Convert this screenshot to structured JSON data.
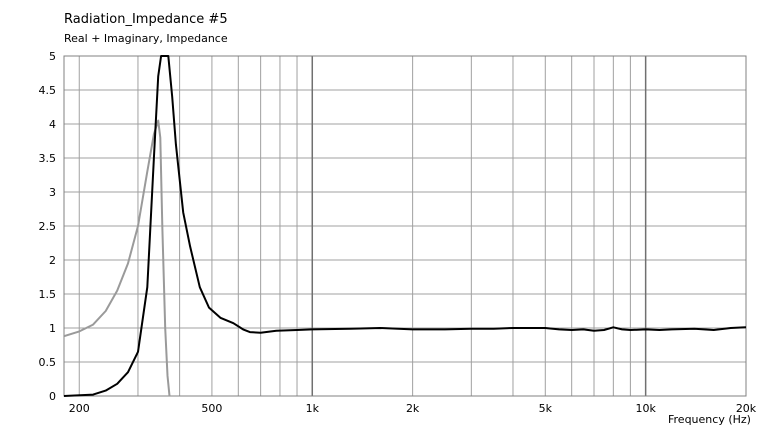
{
  "chart_data": {
    "type": "line",
    "title": "Radiation_Impedance #5",
    "subtitle": "Real + Imaginary, Impedance",
    "xlabel": "Frequency  (Hz)",
    "x_scale": "log",
    "xlim": [
      180,
      20000
    ],
    "ylim": [
      0,
      5
    ],
    "x_ticks": [
      {
        "value": 200,
        "label": "200"
      },
      {
        "value": 500,
        "label": "500"
      },
      {
        "value": 1000,
        "label": "1k"
      },
      {
        "value": 2000,
        "label": "2k"
      },
      {
        "value": 5000,
        "label": "5k"
      },
      {
        "value": 10000,
        "label": "10k"
      },
      {
        "value": 20000,
        "label": "20k"
      }
    ],
    "y_ticks": [
      {
        "value": 0,
        "label": "0"
      },
      {
        "value": 0.5,
        "label": "0.5"
      },
      {
        "value": 1,
        "label": "1"
      },
      {
        "value": 1.5,
        "label": "1.5"
      },
      {
        "value": 2,
        "label": "2"
      },
      {
        "value": 2.5,
        "label": "2.5"
      },
      {
        "value": 3,
        "label": "3"
      },
      {
        "value": 3.5,
        "label": "3.5"
      },
      {
        "value": 4,
        "label": "4"
      },
      {
        "value": 4.5,
        "label": "4.5"
      },
      {
        "value": 5,
        "label": "5"
      }
    ],
    "grid": true,
    "grid_color": "#a0a0a0",
    "series": [
      {
        "color": "#000000",
        "points": [
          [
            180,
            0
          ],
          [
            220,
            0.02
          ],
          [
            240,
            0.08
          ],
          [
            260,
            0.18
          ],
          [
            280,
            0.35
          ],
          [
            300,
            0.65
          ],
          [
            320,
            1.6
          ],
          [
            335,
            3.5
          ],
          [
            345,
            4.7
          ],
          [
            352,
            5
          ],
          [
            370,
            5
          ],
          [
            380,
            4.4
          ],
          [
            390,
            3.7
          ],
          [
            410,
            2.7
          ],
          [
            430,
            2.2
          ],
          [
            460,
            1.6
          ],
          [
            490,
            1.3
          ],
          [
            530,
            1.15
          ],
          [
            580,
            1.07
          ],
          [
            620,
            0.98
          ],
          [
            650,
            0.94
          ],
          [
            700,
            0.93
          ],
          [
            780,
            0.96
          ],
          [
            900,
            0.97
          ],
          [
            1000,
            0.98
          ],
          [
            1300,
            0.99
          ],
          [
            1600,
            1.0
          ],
          [
            2000,
            0.98
          ],
          [
            2500,
            0.98
          ],
          [
            3000,
            0.99
          ],
          [
            3500,
            0.99
          ],
          [
            4000,
            1.0
          ],
          [
            4500,
            1.0
          ],
          [
            5000,
            1.0
          ],
          [
            5500,
            0.98
          ],
          [
            6000,
            0.97
          ],
          [
            6500,
            0.98
          ],
          [
            7000,
            0.96
          ],
          [
            7500,
            0.97
          ],
          [
            8000,
            1.01
          ],
          [
            8500,
            0.98
          ],
          [
            9000,
            0.97
          ],
          [
            10000,
            0.98
          ],
          [
            11000,
            0.97
          ],
          [
            12000,
            0.98
          ],
          [
            14000,
            0.99
          ],
          [
            16000,
            0.97
          ],
          [
            18000,
            1.0
          ],
          [
            20000,
            1.01
          ]
        ]
      },
      {
        "color": "#9a9a9a",
        "points": [
          [
            180,
            0.88
          ],
          [
            200,
            0.95
          ],
          [
            220,
            1.05
          ],
          [
            240,
            1.25
          ],
          [
            260,
            1.55
          ],
          [
            280,
            1.95
          ],
          [
            300,
            2.5
          ],
          [
            320,
            3.3
          ],
          [
            335,
            3.85
          ],
          [
            345,
            4.05
          ],
          [
            350,
            3.8
          ],
          [
            355,
            2.5
          ],
          [
            362,
            1.0
          ],
          [
            368,
            0.3
          ],
          [
            373,
            0
          ]
        ]
      }
    ]
  }
}
